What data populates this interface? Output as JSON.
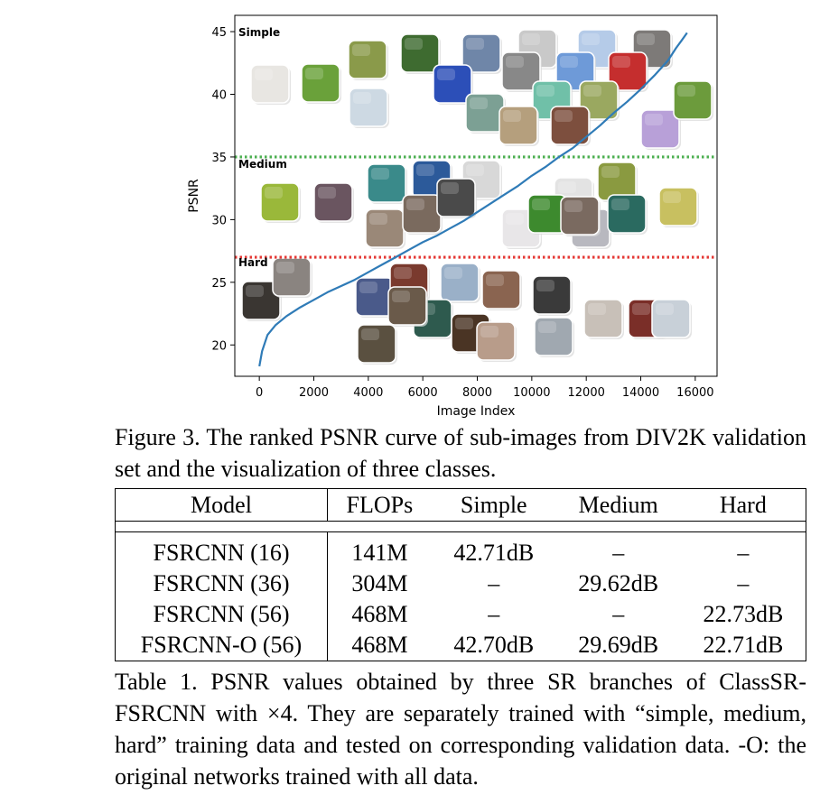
{
  "figure": {
    "chart_data": {
      "type": "line",
      "xlabel": "Image Index",
      "ylabel": "PSNR",
      "xlim": [
        -900,
        16800
      ],
      "ylim": [
        17.5,
        46.3
      ],
      "xticks": [
        0,
        2000,
        4000,
        6000,
        8000,
        10000,
        12000,
        14000,
        16000
      ],
      "xtick_labels": [
        "0",
        "2000",
        "4000",
        "6000",
        "8000",
        "10000",
        "12000",
        "14000",
        "16000"
      ],
      "yticks": [
        20,
        25,
        30,
        35,
        40,
        45
      ],
      "ytick_labels": [
        "20",
        "25",
        "30",
        "35",
        "40",
        "45"
      ],
      "grid": false,
      "series": [
        {
          "color": "#2f7bb7",
          "x": [
            0,
            100,
            300,
            600,
            1000,
            1500,
            2000,
            2500,
            3000,
            3500,
            4000,
            4500,
            5000,
            5500,
            6000,
            6500,
            7000,
            7500,
            8000,
            8500,
            9000,
            9500,
            10000,
            10500,
            11000,
            11500,
            12000,
            12500,
            13000,
            13500,
            14000,
            14500,
            15000,
            15300,
            15500,
            15700
          ],
          "y": [
            18.3,
            19.5,
            20.8,
            21.6,
            22.3,
            23.0,
            23.6,
            24.2,
            24.7,
            25.2,
            25.8,
            26.4,
            27.0,
            27.6,
            28.2,
            28.7,
            29.3,
            29.9,
            30.6,
            31.3,
            32.0,
            32.7,
            33.5,
            34.2,
            35.0,
            35.7,
            36.6,
            37.5,
            38.5,
            39.4,
            40.4,
            41.5,
            42.7,
            43.7,
            44.3,
            44.9
          ]
        }
      ],
      "thresholds": [
        {
          "y": 35,
          "color": "#4caf50",
          "style": "dotted"
        },
        {
          "y": 27,
          "color": "#e53935",
          "style": "dotted"
        }
      ],
      "annotations": [
        "Simple",
        "Medium",
        "Hard"
      ]
    }
  },
  "figure_caption": "Figure 3. The ranked PSNR curve of sub-images from DIV2K validation set and the visualization of three classes.",
  "table": {
    "headers": [
      "Model",
      "FLOPs",
      "Simple",
      "Medium",
      "Hard"
    ],
    "rows": [
      [
        "FSRCNN (16)",
        "141M",
        "42.71dB",
        "–",
        "–"
      ],
      [
        "FSRCNN (36)",
        "304M",
        "–",
        "29.62dB",
        "–"
      ],
      [
        "FSRCNN (56)",
        "468M",
        "–",
        "–",
        "22.73dB"
      ],
      [
        "FSRCNN-O (56)",
        "468M",
        "42.70dB",
        "29.69dB",
        "22.71dB"
      ]
    ]
  },
  "table_caption": "Table 1. PSNR values obtained by three SR branches of ClassSR-FSRCNN with ×4.  They are separately trained with “simple, medium, hard” training data and tested on corresponding validation data. -O: the original networks trained with all data.",
  "thumbnail_colors": {
    "simple": [
      "#e8e6e2",
      "#6aa13a",
      "#8a9a4a",
      "#3e6b30",
      "#6f86a8",
      "#c9c9c9",
      "#b5cbe8",
      "#7d7a78",
      "#cdd9e3",
      "#2c4fb8",
      "#7ca094",
      "#888888",
      "#6e9ad8",
      "#c52e2e",
      "#70c0a8",
      "#9aa860",
      "#b59f7d",
      "#7d4f3e",
      "#b8a0d8",
      "#6c9b3c"
    ],
    "medium": [
      "#9ab83a",
      "#6a5560",
      "#3a8a8a",
      "#2c5a9a",
      "#d8d8d8",
      "#9a8878",
      "#7a6a5e",
      "#4a4a4a",
      "#e8e6e8",
      "#e3e3e3",
      "#3d8a2e",
      "#b8b8bf",
      "#8a9a40",
      "#2a6a60",
      "#7a6a60",
      "#c8c060"
    ],
    "hard": [
      "#3a3632",
      "#8a8480",
      "#4a5a8a",
      "#7a3a2e",
      "#9ab0c8",
      "#8a6450",
      "#3a3a3a",
      "#c8c0b8",
      "#5a5040",
      "#2e5a4e",
      "#4a3424",
      "#b89c8a",
      "#a0a8b0",
      "#6a5a4a",
      "#7a2e28",
      "#c8d0d8"
    ]
  }
}
